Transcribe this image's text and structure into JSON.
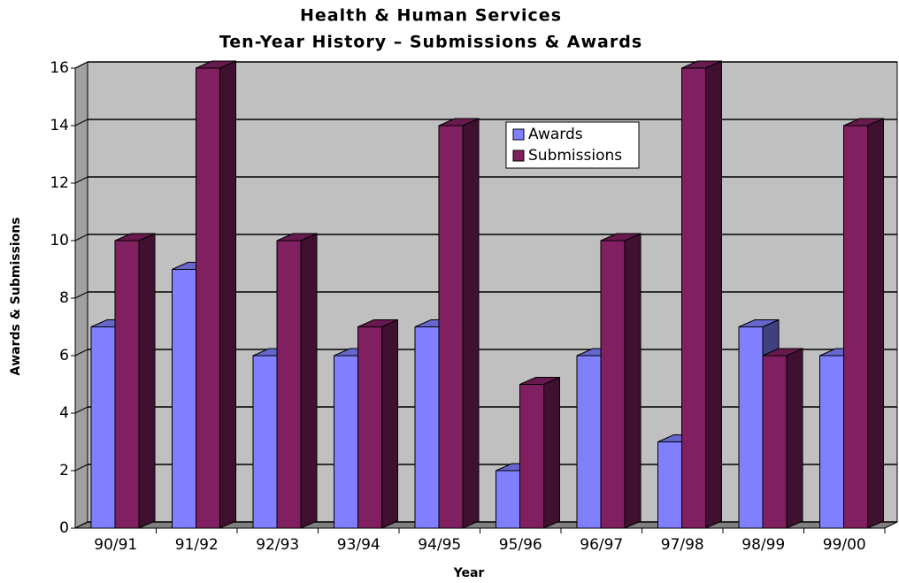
{
  "chart_data": {
    "type": "bar3d",
    "title": "Health & Human Services",
    "subtitle": "Ten-Year History – Submissions & Awards",
    "x_label": "Year",
    "y_label": "Awards & Submissions",
    "categories": [
      "90/91",
      "91/92",
      "92/93",
      "93/94",
      "94/95",
      "95/96",
      "96/97",
      "97/98",
      "98/99",
      "99/00"
    ],
    "series": [
      {
        "name": "Awards",
        "color": "#8080ff",
        "values": [
          7,
          9,
          6,
          6,
          7,
          2,
          6,
          3,
          7,
          6
        ]
      },
      {
        "name": "Submissions",
        "color": "#802060",
        "values": [
          10,
          16,
          10,
          7,
          14,
          5,
          10,
          16,
          6,
          14
        ]
      }
    ],
    "ylim": [
      0,
      16
    ],
    "yticks": [
      0,
      2,
      4,
      6,
      8,
      10,
      12,
      14,
      16
    ],
    "grid": true
  }
}
